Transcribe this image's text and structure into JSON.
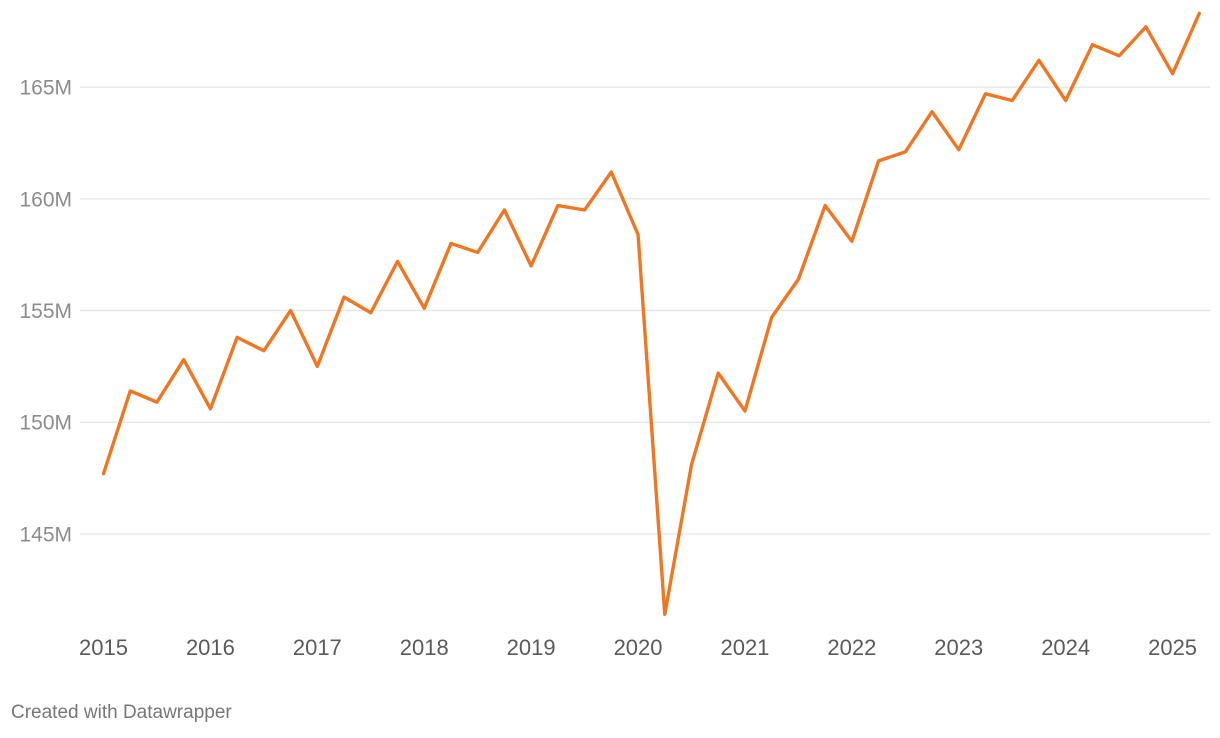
{
  "chart_data": {
    "type": "line",
    "title": "",
    "xlabel": "",
    "ylabel": "",
    "y_ticks": [
      "145M",
      "150M",
      "155M",
      "160M",
      "165M"
    ],
    "x_ticks": [
      "2015",
      "2016",
      "2017",
      "2018",
      "2019",
      "2020",
      "2021",
      "2022",
      "2023",
      "2024",
      "2025"
    ],
    "ylim": [
      140.7,
      168.9
    ],
    "xlim": [
      2014.78,
      2025.35
    ],
    "grid": true,
    "line_color": "#f07622",
    "series": [
      {
        "x": [
          2015.0,
          2015.25,
          2015.5,
          2015.75,
          2016.0,
          2016.25,
          2016.5,
          2016.75,
          2017.0,
          2017.25,
          2017.5,
          2017.75,
          2018.0,
          2018.25,
          2018.5,
          2018.75,
          2019.0,
          2019.25,
          2019.5,
          2019.75,
          2020.0,
          2020.25,
          2020.5,
          2020.75,
          2021.0,
          2021.25,
          2021.5,
          2021.75,
          2022.0,
          2022.25,
          2022.5,
          2022.75,
          2023.0,
          2023.25,
          2023.5,
          2023.75,
          2024.0,
          2024.25,
          2024.5,
          2024.75,
          2025.0,
          2025.25
        ],
        "values": [
          147.7,
          151.4,
          150.9,
          152.8,
          150.6,
          153.8,
          153.2,
          155.0,
          152.5,
          155.6,
          154.9,
          157.2,
          155.1,
          158.0,
          157.6,
          159.5,
          157.0,
          159.7,
          159.5,
          161.2,
          158.4,
          141.4,
          148.1,
          152.2,
          150.5,
          154.7,
          156.4,
          159.7,
          158.1,
          161.7,
          162.1,
          163.9,
          162.2,
          164.7,
          164.4,
          166.2,
          164.4,
          166.9,
          166.4,
          167.7,
          165.6,
          168.3
        ]
      }
    ]
  },
  "footer": {
    "credit": "Created with Datawrapper"
  }
}
